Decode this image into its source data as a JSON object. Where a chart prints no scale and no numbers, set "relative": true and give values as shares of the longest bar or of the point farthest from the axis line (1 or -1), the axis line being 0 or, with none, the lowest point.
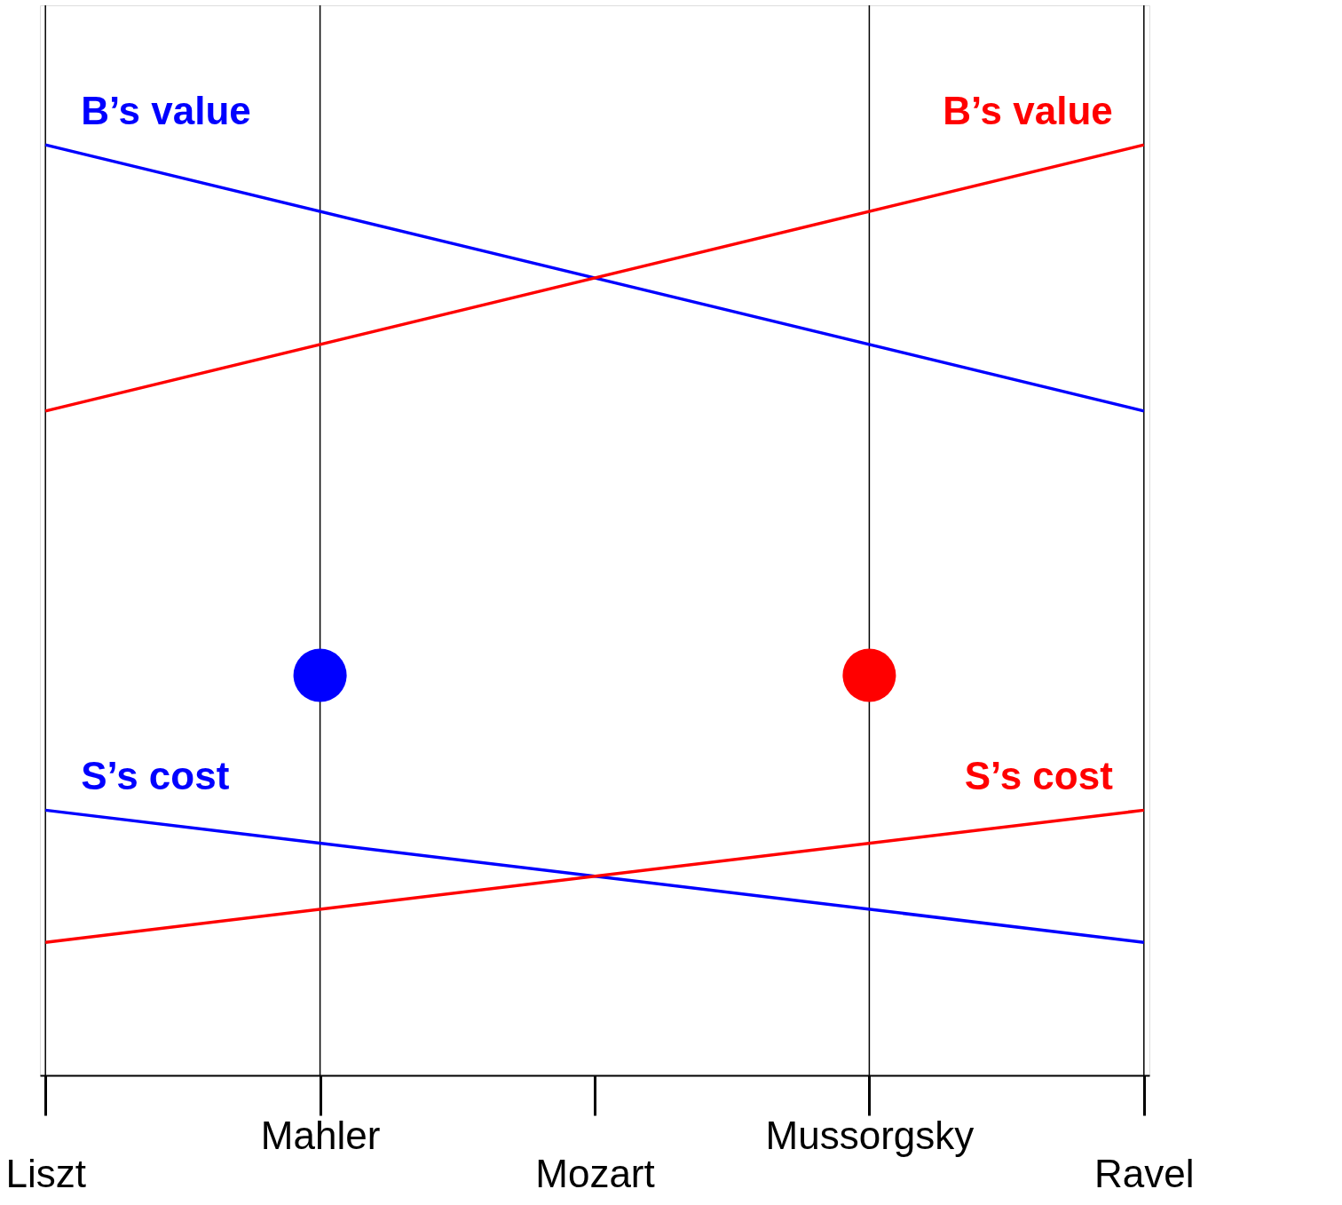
{
  "chart_data": {
    "type": "line",
    "relative": true,
    "categories": [
      "Liszt",
      "Mahler",
      "Mozart",
      "Mussorgsky",
      "Ravel"
    ],
    "series": [
      {
        "name": "B’s value",
        "color": "#0000ff",
        "values": [
          1,
          null,
          null,
          null,
          0.714
        ]
      },
      {
        "name": "B’s value",
        "color": "#ff0000",
        "values": [
          0.714,
          null,
          null,
          null,
          1
        ]
      },
      {
        "name": "S’s cost",
        "color": "#0000ff",
        "values": [
          0.285,
          null,
          null,
          null,
          0.143
        ]
      },
      {
        "name": "S’s cost",
        "color": "#ff0000",
        "values": [
          0.143,
          null,
          null,
          null,
          0.285
        ]
      },
      {
        "type": "scatter",
        "color": "#0000ff",
        "values": [
          null,
          0.43,
          null,
          null,
          null
        ]
      },
      {
        "type": "scatter",
        "color": "#ff0000",
        "values": [
          null,
          null,
          null,
          0.43,
          null
        ]
      }
    ],
    "ref_lines": [
      {
        "axis": "x",
        "value": "Liszt"
      },
      {
        "axis": "x",
        "value": "Mahler"
      },
      {
        "axis": "x",
        "value": "Mussorgsky"
      },
      {
        "axis": "x",
        "value": "Ravel"
      }
    ],
    "grid": false
  }
}
